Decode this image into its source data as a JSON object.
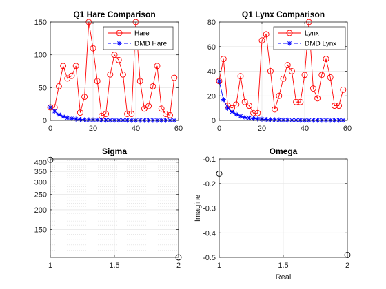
{
  "colors": {
    "series_red": "#ff0000",
    "series_blue": "#0000ff",
    "axis": "#262626",
    "grid": "#e6e6e6",
    "minor_grid": "#d9d9d9",
    "marker_black": "#000000"
  },
  "chart_data": [
    {
      "id": "hare",
      "type": "line",
      "title": "Q1 Hare Comparison",
      "xlabel": "",
      "ylabel": "",
      "xlim": [
        0,
        60
      ],
      "ylim": [
        0,
        150
      ],
      "xticks": [
        0,
        20,
        40,
        60
      ],
      "yticks": [
        0,
        50,
        100,
        150
      ],
      "grid": true,
      "legend": "top-right",
      "series": [
        {
          "name": "Hare",
          "color": "#ff0000",
          "marker": "circle",
          "x": [
            0,
            2,
            4,
            6,
            8,
            10,
            12,
            14,
            16,
            18,
            20,
            22,
            24,
            26,
            28,
            30,
            32,
            34,
            36,
            38,
            40,
            42,
            44,
            46,
            48,
            50,
            52,
            54,
            56,
            58
          ],
          "y": [
            20,
            20,
            52,
            83,
            64,
            68,
            83,
            12,
            36,
            150,
            110,
            60,
            7,
            10,
            70,
            100,
            92,
            70,
            10,
            10,
            150,
            60,
            18,
            22,
            52,
            83,
            18,
            10,
            8,
            65
          ]
        },
        {
          "name": "DMD Hare",
          "color": "#0000ff",
          "marker": "star",
          "x": [
            0,
            2,
            4,
            6,
            8,
            10,
            12,
            14,
            16,
            18,
            20,
            22,
            24,
            26,
            28,
            30,
            32,
            34,
            36,
            38,
            40,
            42,
            44,
            46,
            48,
            50,
            52,
            54,
            56,
            58
          ],
          "y": [
            20,
            14,
            9,
            6,
            4,
            3,
            2,
            1.5,
            1,
            1,
            0.8,
            0.6,
            0.5,
            0.4,
            0.3,
            0.3,
            0.2,
            0.2,
            0.2,
            0.1,
            0.1,
            0.1,
            0.1,
            0.1,
            0.1,
            0.1,
            0.1,
            0.1,
            0.1,
            0.1
          ]
        }
      ]
    },
    {
      "id": "lynx",
      "type": "line",
      "title": "Q1 Lynx Comparison",
      "xlabel": "",
      "ylabel": "",
      "xlim": [
        0,
        60
      ],
      "ylim": [
        0,
        80
      ],
      "xticks": [
        0,
        20,
        40,
        60
      ],
      "yticks": [
        0,
        20,
        40,
        60,
        80
      ],
      "grid": true,
      "legend": "top-right",
      "series": [
        {
          "name": "Lynx",
          "color": "#ff0000",
          "marker": "circle",
          "x": [
            0,
            2,
            4,
            6,
            8,
            10,
            12,
            14,
            16,
            18,
            20,
            22,
            24,
            26,
            28,
            30,
            32,
            34,
            36,
            38,
            40,
            42,
            44,
            46,
            48,
            50,
            52,
            54,
            56,
            58
          ],
          "y": [
            32,
            50,
            12,
            10,
            13,
            36,
            15,
            12,
            6,
            6,
            65,
            70,
            40,
            9,
            20,
            34,
            45,
            40,
            15,
            15,
            37,
            80,
            26,
            18,
            37,
            50,
            35,
            12,
            12,
            25
          ]
        },
        {
          "name": "DMD Lynx",
          "color": "#0000ff",
          "marker": "star",
          "x": [
            0,
            2,
            4,
            6,
            8,
            10,
            12,
            14,
            16,
            18,
            20,
            22,
            24,
            26,
            28,
            30,
            32,
            34,
            36,
            38,
            40,
            42,
            44,
            46,
            48,
            50,
            52,
            54,
            56,
            58
          ],
          "y": [
            32,
            17,
            10,
            7,
            5,
            3.5,
            2.5,
            2,
            1.5,
            1.2,
            1,
            0.8,
            0.6,
            0.5,
            0.4,
            0.3,
            0.3,
            0.2,
            0.2,
            0.2,
            0.1,
            0.1,
            0.1,
            0.1,
            0.1,
            0.1,
            0.1,
            0.1,
            0.1,
            0.1
          ]
        }
      ]
    },
    {
      "id": "sigma",
      "type": "scatter",
      "title": "Sigma",
      "xlabel": "",
      "ylabel": "",
      "xlim": [
        1,
        2
      ],
      "ylim": [
        100,
        420
      ],
      "yscale": "log",
      "xticks": [
        1,
        1.5,
        2
      ],
      "yticks": [
        150,
        200,
        250,
        300,
        350,
        400
      ],
      "grid": true,
      "legend": "none",
      "series": [
        {
          "marker": "circle",
          "color": "#000000",
          "x": [
            1,
            2
          ],
          "y": [
            415,
            100
          ]
        }
      ]
    },
    {
      "id": "omega",
      "type": "scatter",
      "title": "Omega",
      "xlabel": "Real",
      "ylabel": "Imagine",
      "xlim": [
        1,
        2
      ],
      "ylim": [
        -0.5,
        -0.1
      ],
      "xticks": [
        1,
        1.5,
        2
      ],
      "yticks": [
        -0.5,
        -0.4,
        -0.3,
        -0.2,
        -0.1
      ],
      "grid": true,
      "legend": "none",
      "series": [
        {
          "marker": "circle",
          "color": "#000000",
          "x": [
            1,
            2
          ],
          "y": [
            -0.16,
            -0.49
          ]
        }
      ]
    }
  ]
}
